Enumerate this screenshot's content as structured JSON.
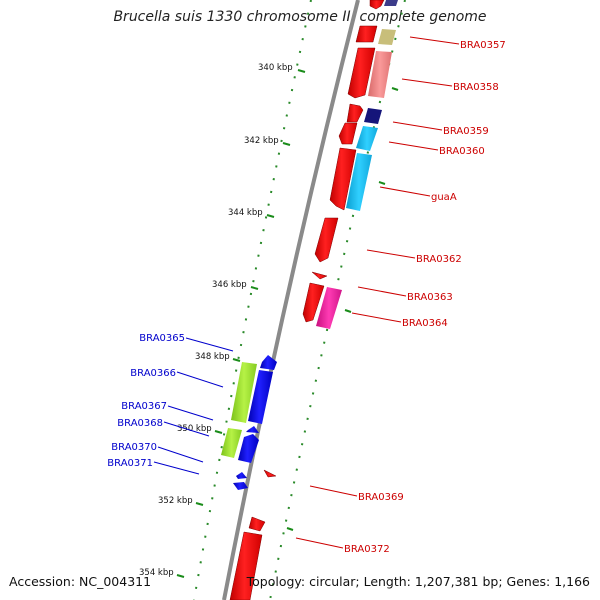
{
  "title": "Brucella suis 1330 chromosome II, complete genome",
  "accession": "Accession: NC_004311",
  "topology": "Topology: circular; Length: 1,207,381 bp; Genes: 1,166",
  "tick_labels": [
    "340 kbp",
    "342 kbp",
    "344 kbp",
    "346 kbp",
    "348 kbp",
    "350 kbp",
    "352 kbp",
    "354 kbp"
  ],
  "colors": {
    "red": "#ff1a1a",
    "blue": "#1a1aff",
    "label_red": "#cc0000",
    "label_blue": "#0000cc",
    "tick_green": "#1a8c1a",
    "backbone": "#888888",
    "olive": "#c8be7a",
    "pink": "#f08a8a",
    "navy": "#1a1a80",
    "cyan": "#1ec3f0",
    "magenta": "#f01ea0",
    "lime": "#9ee632"
  },
  "genes_right": [
    "BRA0357",
    "BRA0358",
    "BRA0359",
    "BRA0360",
    "guaA",
    "BRA0362",
    "BRA0363",
    "BRA0364",
    "BRA0369",
    "BRA0372"
  ],
  "genes_left": [
    "BRA0365",
    "BRA0366",
    "BRA0367",
    "BRA0368",
    "BRA0370",
    "BRA0371"
  ]
}
